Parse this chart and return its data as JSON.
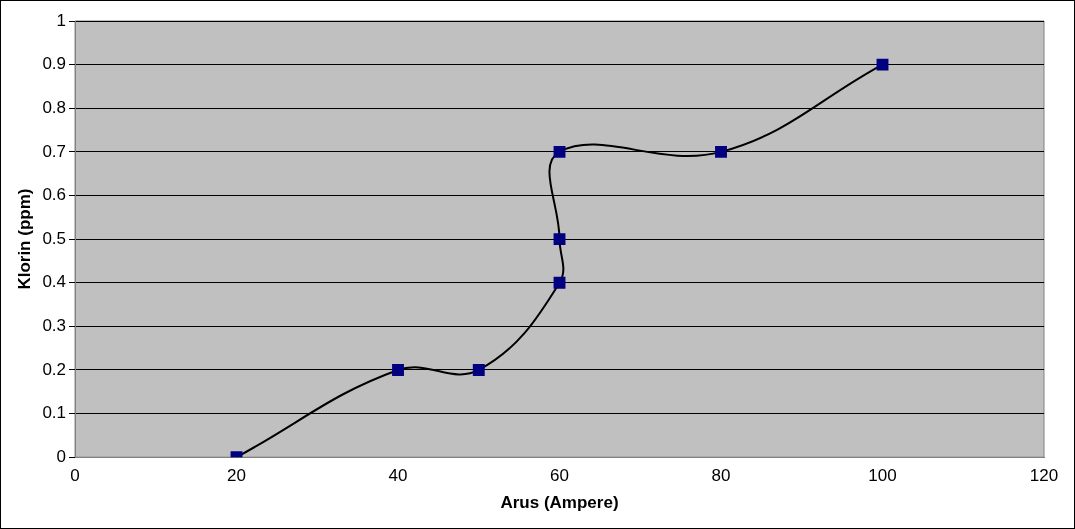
{
  "chart_data": {
    "type": "line",
    "xlabel": "Arus (Ampere)",
    "ylabel": "Klorin (ppm)",
    "x": [
      20,
      40,
      50,
      60,
      60,
      60,
      80,
      100
    ],
    "series": [
      {
        "color": "#000080",
        "values": [
          0,
          0.2,
          0.2,
          0.4,
          0.5,
          0.7,
          0.7,
          0.9
        ]
      }
    ],
    "xlim": [
      0,
      120
    ],
    "xticks": [
      0,
      20,
      40,
      60,
      80,
      100,
      120
    ],
    "ylim": [
      0,
      1
    ],
    "yticks": [
      0,
      0.1,
      0.2,
      0.3,
      0.4,
      0.5,
      0.6,
      0.7,
      0.8,
      0.9,
      1
    ],
    "grid": "y",
    "legend": false,
    "marker": "square",
    "line_style": "solid"
  }
}
